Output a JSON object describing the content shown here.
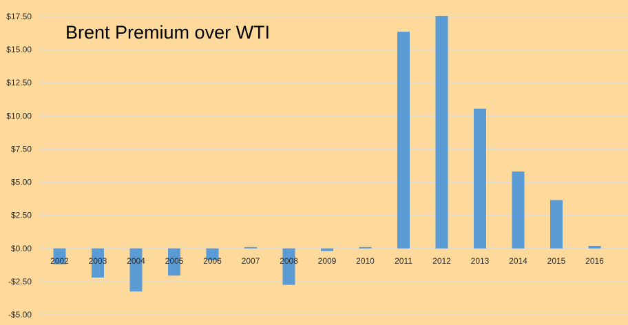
{
  "chart_data": {
    "type": "bar",
    "title": "Brent Premium over WTI",
    "xlabel": "",
    "ylabel": "",
    "categories": [
      "2002",
      "2003",
      "2004",
      "2005",
      "2006",
      "2007",
      "2008",
      "2009",
      "2010",
      "2011",
      "2012",
      "2013",
      "2014",
      "2015",
      "2016"
    ],
    "values": [
      -1.2,
      -2.2,
      -3.25,
      -2.05,
      -0.9,
      0.1,
      -2.75,
      -0.2,
      0.1,
      16.35,
      17.55,
      10.55,
      5.8,
      3.65,
      0.2
    ],
    "ylim": [
      -5,
      17.5
    ],
    "yticks": [
      -5,
      -2.5,
      0,
      2.5,
      5,
      7.5,
      10,
      12.5,
      15,
      17.5
    ],
    "ytick_labels": [
      "-$5.00",
      "-$2.50",
      "$0.00",
      "$2.50",
      "$5.00",
      "$7.50",
      "$10.00",
      "$12.50",
      "$15.00",
      "$17.50"
    ],
    "grid": true,
    "legend": "none",
    "colors": {
      "bar": "#5b9bd5",
      "background": "#fdd99b",
      "grid": "#d9d9d9",
      "text": "#2b2b2b"
    }
  }
}
